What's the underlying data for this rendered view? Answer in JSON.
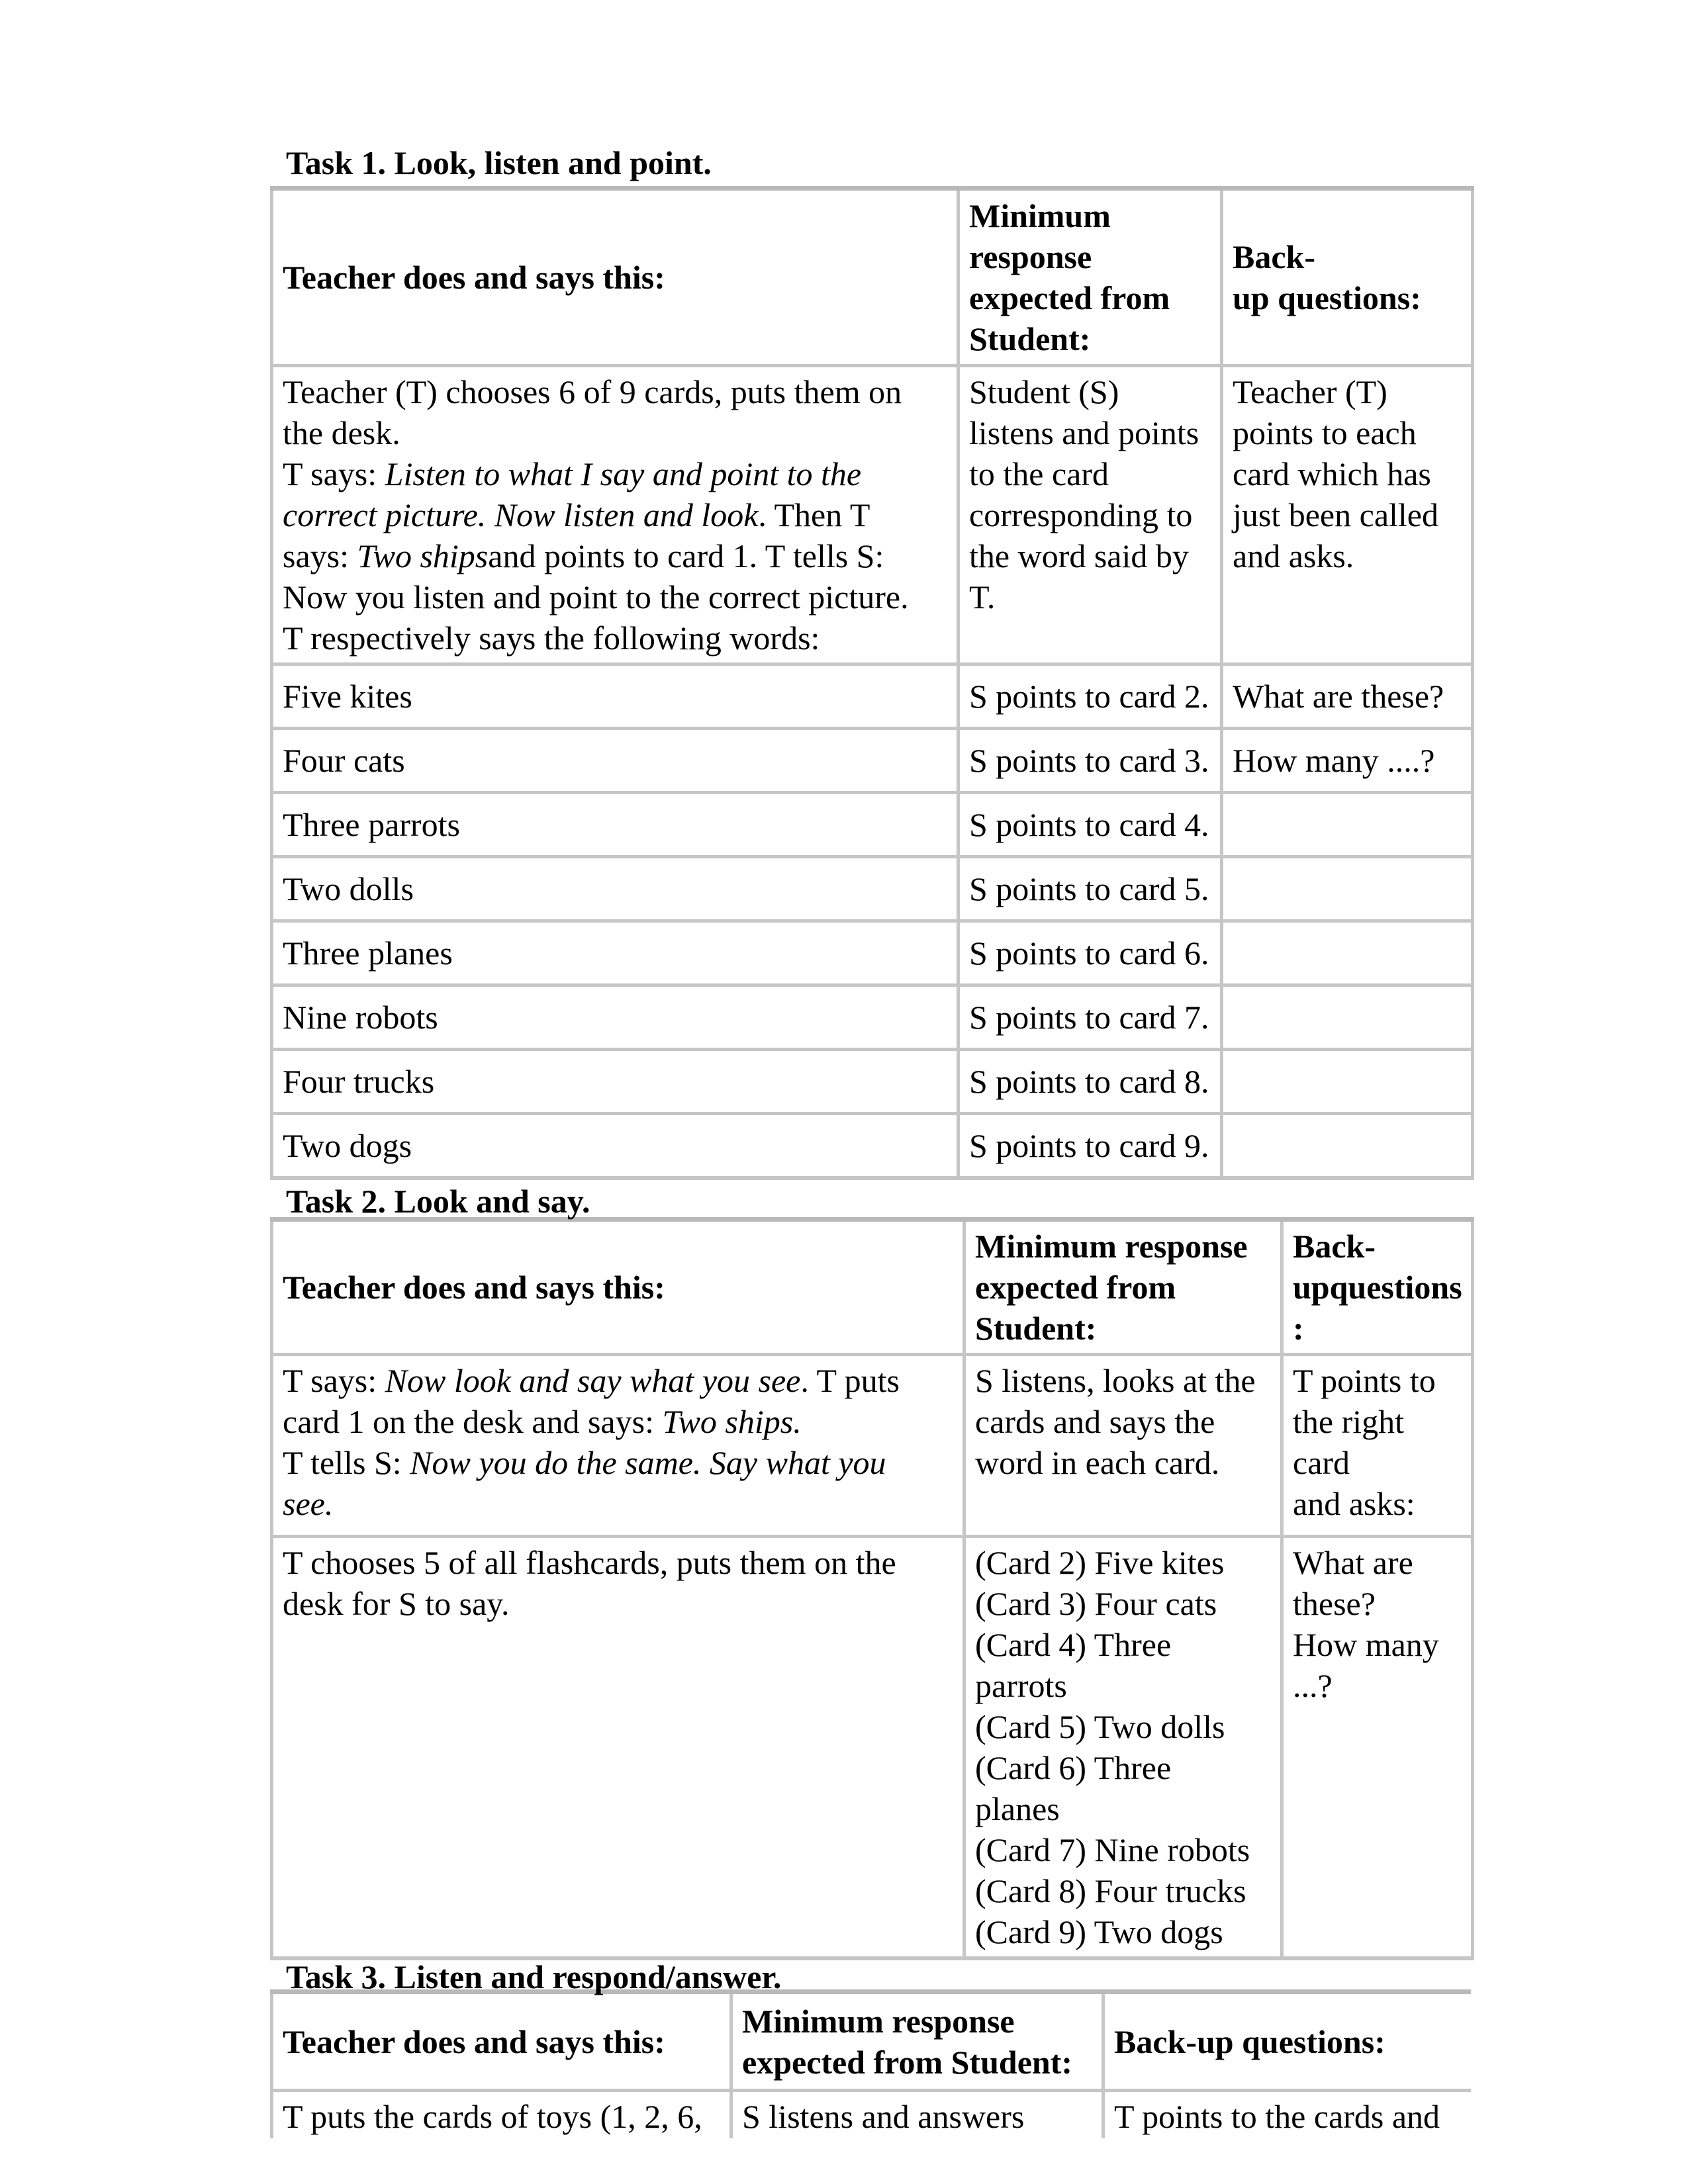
{
  "page": {
    "background": "#ffffff",
    "text_color": "#000000",
    "border_color": "#c6c6c6"
  },
  "task1": {
    "heading": "Task 1. Look, listen and point.",
    "header": {
      "col1": "Teacher does and says this:",
      "col2": "Minimum\nresponse\nexpected from\nStudent:",
      "col3": "Back-\nup questions:"
    },
    "row1": {
      "col1_runs": [
        {
          "t": "Teacher (T) chooses 6 of 9 cards, puts them on\nthe desk.\nT says: "
        },
        {
          "t": "Listen to what I say and point to the\ncorrect picture. Now listen and look",
          "i": true
        },
        {
          "t": ". Then T\nsays: "
        },
        {
          "t": "Two ships",
          "i": true
        },
        {
          "t": "and points to card 1. T tells S:\nNow you listen and point to the correct picture.\nT respectively says the following words:"
        }
      ],
      "col2": "Student (S)\nlistens and points\nto the card\ncorresponding to\nthe word said by\nT.",
      "col3": "Teacher (T)\npoints to each\ncard which has\njust been called\nand asks."
    },
    "word_rows": [
      {
        "word": "Five kites",
        "response": "S points to card 2.",
        "backup": "What are these?"
      },
      {
        "word": "Four cats",
        "response": "S points to card 3.",
        "backup": "How many ....?"
      },
      {
        "word": "Three parrots",
        "response": "S points to card 4.",
        "backup": ""
      },
      {
        "word": "Two dolls",
        "response": "S points to card 5.",
        "backup": ""
      },
      {
        "word": "Three planes",
        "response": "S points to card 6.",
        "backup": ""
      },
      {
        "word": "Nine robots",
        "response": "S points to card 7.",
        "backup": ""
      },
      {
        "word": "Four trucks",
        "response": "S points to card 8.",
        "backup": ""
      },
      {
        "word": "Two dogs",
        "response": "S points to card 9.",
        "backup": ""
      }
    ]
  },
  "task2": {
    "heading": "Task 2. Look and say.",
    "header": {
      "col1": "Teacher does and says this:",
      "col2": "Minimum response\nexpected from\nStudent:",
      "col3": "Back-\nupquestions:"
    },
    "row1": {
      "col1_runs": [
        {
          "t": "T says: "
        },
        {
          "t": "Now look and say what you see",
          "i": true
        },
        {
          "t": ". T puts\ncard 1 on the desk and says: "
        },
        {
          "t": "Two ships.",
          "i": true
        },
        {
          "t": "\nT tells S: "
        },
        {
          "t": "Now you do the same. Say what you\nsee.",
          "i": true
        }
      ],
      "col2": "S listens, looks at the\ncards and says the\nword in each card.",
      "col3": "T points to\nthe right card\nand asks:"
    },
    "row2": {
      "col1": "T chooses 5 of all flashcards, puts them on the\ndesk for S to say.",
      "col2": "(Card 2) Five kites\n(Card 3) Four cats\n(Card 4) Three\nparrots\n(Card 5) Two dolls\n(Card 6) Three\nplanes\n(Card 7) Nine robots\n(Card 8) Four trucks\n(Card 9) Two dogs",
      "col3": "What are\nthese?\nHow many\n...?"
    }
  },
  "task3": {
    "heading": "Task 3. Listen and respond/answer.",
    "header": {
      "col1": "Teacher does and says this:",
      "col2": "Minimum response\nexpected from Student:",
      "col3": "Back-up questions:"
    },
    "row1": {
      "col1": "T puts the cards of toys (1, 2, 6,",
      "col2": "S listens and answers",
      "col3": "T points to the cards and"
    }
  }
}
